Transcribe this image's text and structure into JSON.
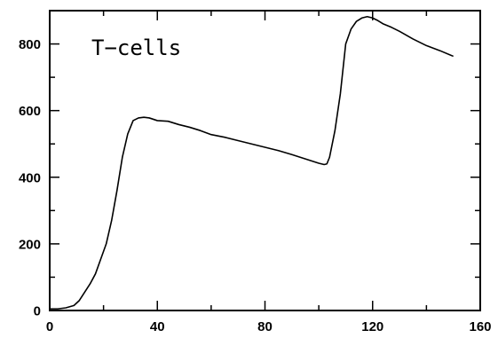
{
  "chart_data": {
    "type": "line",
    "title": "",
    "xlabel": "",
    "ylabel": "",
    "xlim": [
      0,
      160
    ],
    "ylim": [
      0,
      900
    ],
    "grid": false,
    "annotation": "T−cells",
    "x_ticks": [
      0,
      40,
      80,
      120,
      160
    ],
    "x_tick_labels": [
      "0",
      "40",
      "80",
      "120",
      "160"
    ],
    "y_ticks": [
      0,
      200,
      400,
      600,
      800
    ],
    "y_tick_labels": [
      "0",
      "200",
      "400",
      "600",
      "800"
    ],
    "x_minor_ticks": [
      20,
      60,
      100,
      140
    ],
    "y_minor_ticks": [
      100,
      300,
      500,
      700
    ],
    "series": [
      {
        "x": [
          0,
          3,
          6,
          9,
          11,
          13,
          15,
          17,
          19,
          21,
          23,
          25,
          27,
          29,
          31,
          33,
          35,
          37,
          40,
          44,
          48,
          52,
          56,
          60,
          65,
          70,
          75,
          80,
          85,
          90,
          95,
          100,
          102,
          103,
          104,
          106,
          108,
          110,
          112,
          114,
          116,
          118,
          120,
          122,
          124,
          127,
          130,
          135,
          140,
          145,
          150
        ],
        "y": [
          5,
          5,
          8,
          15,
          30,
          55,
          80,
          110,
          155,
          200,
          270,
          360,
          460,
          530,
          570,
          578,
          580,
          578,
          570,
          568,
          558,
          550,
          540,
          528,
          520,
          510,
          500,
          490,
          480,
          468,
          455,
          442,
          438,
          440,
          460,
          540,
          650,
          800,
          845,
          868,
          878,
          882,
          878,
          870,
          860,
          850,
          838,
          815,
          795,
          780,
          763
        ]
      }
    ]
  }
}
